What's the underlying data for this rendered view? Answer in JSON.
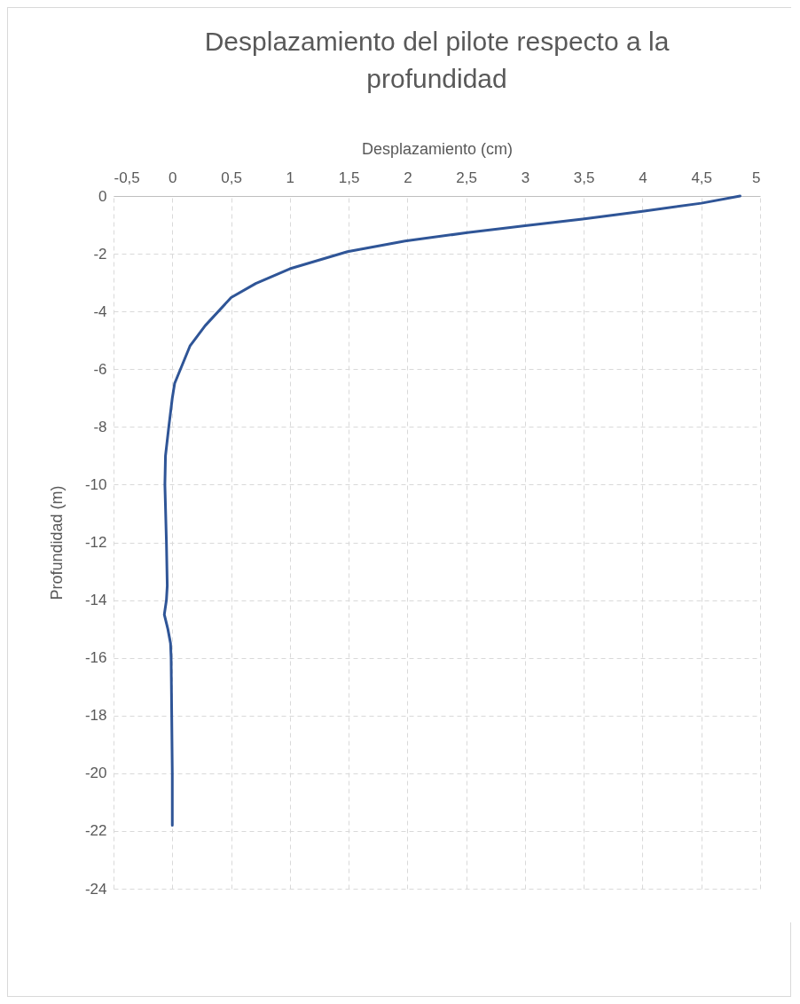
{
  "chart_data": {
    "type": "line",
    "title": "Desplazamiento del pilote respecto a la profundidad",
    "xlabel": "Desplazamiento (cm)",
    "ylabel": "Profundidad (m)",
    "series": [
      {
        "color": "#2f5597",
        "x": [
          4.83,
          4.5,
          4.0,
          3.49,
          3.0,
          2.51,
          1.98,
          1.49,
          1.0,
          0.71,
          0.5,
          0.28,
          0.15,
          0.02,
          0.0,
          -0.03,
          -0.058,
          -0.063,
          -0.05,
          -0.043,
          -0.05,
          -0.068,
          -0.038,
          -0.015,
          -0.01,
          -0.005,
          0.0,
          0.0
        ],
        "values": [
          0,
          -0.25,
          -0.53,
          -0.8,
          -1.03,
          -1.27,
          -1.56,
          -1.93,
          -2.52,
          -3.03,
          -3.52,
          -4.49,
          -5.2,
          -6.49,
          -7,
          -8,
          -9,
          -10,
          -12,
          -13.5,
          -14,
          -14.5,
          -15,
          -15.5,
          -16,
          -18,
          -20,
          -21.8
        ]
      }
    ],
    "xlim": [
      -0.5,
      5
    ],
    "xticks": [
      {
        "value": -0.5,
        "label": "-0,5"
      },
      0,
      {
        "value": 0.5,
        "label": "0,5"
      },
      1,
      {
        "value": 1.5,
        "label": "1,5"
      },
      2,
      {
        "value": 2.5,
        "label": "2,5"
      },
      3,
      {
        "value": 3.5,
        "label": "3,5"
      },
      4,
      {
        "value": 4.5,
        "label": "4,5"
      },
      5
    ],
    "ylim": [
      -24,
      0
    ],
    "yticks": [
      0,
      -2,
      -4,
      -6,
      -8,
      -10,
      -12,
      -14,
      -16,
      -18,
      -20,
      -22,
      -24
    ],
    "grid": true,
    "line_style": "solid"
  }
}
